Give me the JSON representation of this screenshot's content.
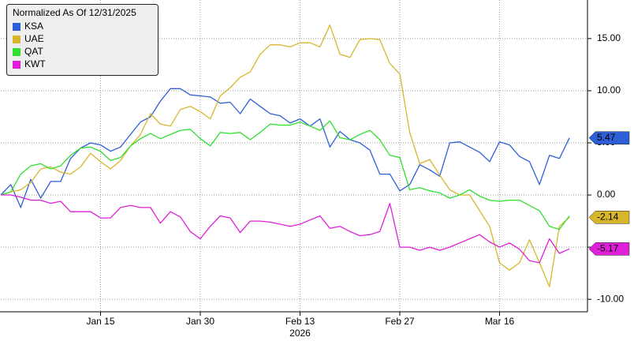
{
  "chart_data": {
    "type": "line",
    "legend_title": "Normalized As Of 12/31/2025",
    "legend_position": "top-left",
    "grid": true,
    "y_axis_side": "right",
    "categories": [
      null,
      null,
      null,
      null,
      null,
      null,
      null,
      null,
      null,
      null,
      "Jan 15",
      null,
      null,
      null,
      null,
      null,
      null,
      null,
      null,
      null,
      "Jan 30",
      null,
      null,
      null,
      null,
      null,
      null,
      null,
      null,
      null,
      "Feb 13",
      null,
      null,
      null,
      null,
      null,
      null,
      null,
      null,
      null,
      "Feb 27",
      null,
      null,
      null,
      null,
      null,
      null,
      null,
      null,
      null,
      "Mar 16",
      null,
      null,
      null,
      null,
      null,
      null,
      null
    ],
    "x_sublabel": {
      "text": "2026",
      "category": 30
    },
    "ylim": [
      -11.2,
      18.7
    ],
    "yticks": [
      {
        "value": -10,
        "label": "-10.00"
      },
      {
        "value": -5,
        "label": "-5.00"
      },
      {
        "value": 0,
        "label": "0.00"
      },
      {
        "value": 5,
        "label": "5.00"
      },
      {
        "value": 10,
        "label": "10.00"
      },
      {
        "value": 15,
        "label": "15.00"
      }
    ],
    "series": [
      {
        "name": "KSA",
        "color": "#2e5fd6",
        "end_label": true,
        "label_text_color": "#ffffff",
        "values": [
          0,
          1.0,
          -1.2,
          1.5,
          -0.3,
          1.3,
          1.3,
          3.5,
          4.5,
          5.0,
          4.8,
          4.2,
          4.6,
          5.8,
          7.0,
          7.5,
          9.0,
          10.2,
          10.2,
          9.6,
          9.5,
          9.4,
          8.8,
          8.9,
          7.8,
          9.2,
          8.5,
          7.8,
          7.6,
          6.9,
          7.3,
          6.6,
          7.3,
          4.6,
          6.1,
          5.3,
          5.0,
          4.3,
          2.0,
          2.0,
          0.4,
          1.0,
          2.9,
          2.4,
          1.8,
          5.0,
          5.1,
          4.6,
          4.1,
          3.2,
          5.1,
          4.8,
          3.7,
          3.2,
          1.0,
          3.8,
          3.5,
          5.47
        ]
      },
      {
        "name": "UAE",
        "color": "#d8b62c",
        "end_label": true,
        "label_text_color": "#000000",
        "values": [
          0,
          0.3,
          0.5,
          1.2,
          2.5,
          2.7,
          2.2,
          2.0,
          2.7,
          4.0,
          3.2,
          2.5,
          3.3,
          4.7,
          5.8,
          7.8,
          6.8,
          6.6,
          8.2,
          8.5,
          8.0,
          7.3,
          9.5,
          10.3,
          11.3,
          11.8,
          13.5,
          14.4,
          14.4,
          14.2,
          14.6,
          14.6,
          14.2,
          16.3,
          13.5,
          13.2,
          14.9,
          15.0,
          14.9,
          12.6,
          11.6,
          6.0,
          3.0,
          3.4,
          1.9,
          0.5,
          0.0,
          0.0,
          -1.5,
          -3.0,
          -6.5,
          -7.2,
          -6.5,
          -4.3,
          -6.5,
          -8.8,
          -3.0,
          -2.14
        ]
      },
      {
        "name": "QAT",
        "color": "#2fe02f",
        "end_label": false,
        "label_text_color": "#000000",
        "values": [
          0,
          0.3,
          2.0,
          2.8,
          3.0,
          2.5,
          2.8,
          3.8,
          4.5,
          4.6,
          4.2,
          3.3,
          3.6,
          4.7,
          5.4,
          5.9,
          5.4,
          5.8,
          6.2,
          6.3,
          5.4,
          4.7,
          6.0,
          5.9,
          6.0,
          5.3,
          6.0,
          6.8,
          6.7,
          6.7,
          7.0,
          6.6,
          6.2,
          7.1,
          5.5,
          5.3,
          5.8,
          6.2,
          5.3,
          3.8,
          3.6,
          0.5,
          0.7,
          0.4,
          0.2,
          -0.3,
          0.0,
          0.5,
          -0.1,
          -0.5,
          -0.6,
          -0.5,
          -0.5,
          -1.0,
          -1.5,
          -3.0,
          -3.3,
          -2.0
        ]
      },
      {
        "name": "KWT",
        "color": "#e020d8",
        "end_label": true,
        "label_text_color": "#ffffff",
        "values": [
          0,
          0,
          -0.2,
          -0.5,
          -0.5,
          -0.8,
          -0.6,
          -1.6,
          -1.6,
          -1.6,
          -2.2,
          -2.2,
          -1.2,
          -1.0,
          -1.2,
          -1.2,
          -2.7,
          -1.6,
          -2.1,
          -3.5,
          -4.2,
          -3.0,
          -2.0,
          -2.2,
          -3.6,
          -2.5,
          -2.5,
          -2.6,
          -2.8,
          -3.0,
          -2.8,
          -2.4,
          -2.0,
          -3.2,
          -3.0,
          -3.5,
          -3.9,
          -3.8,
          -3.5,
          -0.8,
          -5.0,
          -5.0,
          -5.3,
          -5.0,
          -5.3,
          -5.0,
          -4.6,
          -4.2,
          -3.8,
          -4.5,
          -5.0,
          -4.6,
          -5.2,
          -6.3,
          -6.5,
          -4.2,
          -5.6,
          -5.17
        ]
      }
    ]
  }
}
